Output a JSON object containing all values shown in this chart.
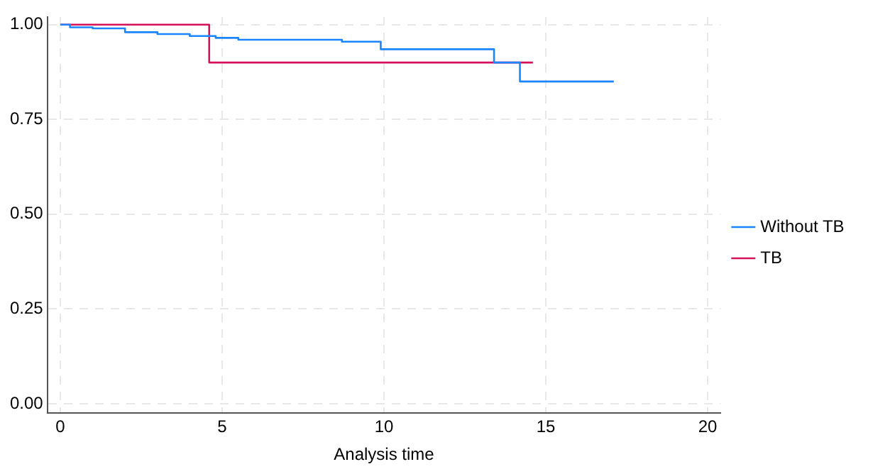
{
  "chart_data": {
    "type": "step",
    "xlabel": "Analysis time",
    "xlim": [
      -0.4,
      20.4
    ],
    "xticks": [
      0,
      5,
      10,
      15,
      20
    ],
    "ylim": [
      -0.025,
      1.02
    ],
    "yticks": [
      {
        "value": 0,
        "label": "0.00"
      },
      {
        "value": 0.25,
        "label": "0.25"
      },
      {
        "value": 0.5,
        "label": "0.50"
      },
      {
        "value": 0.75,
        "label": "0.75"
      },
      {
        "value": 1,
        "label": "1.00"
      }
    ],
    "grid": true,
    "legend": "right",
    "series": [
      {
        "name": "Without TB",
        "color": "#1a85ff",
        "x": [
          0,
          0.3,
          1,
          2,
          3,
          4,
          4.8,
          5.5,
          8.7,
          9.9,
          13.4,
          14.2,
          17.1
        ],
        "values": [
          1,
          0.993,
          0.99,
          0.98,
          0.975,
          0.97,
          0.965,
          0.96,
          0.955,
          0.935,
          0.9,
          0.85,
          0.85
        ]
      },
      {
        "name": "TB",
        "color": "#d41159",
        "x": [
          0,
          4.6,
          14.6
        ],
        "values": [
          1,
          0.9,
          0.9
        ]
      }
    ]
  }
}
